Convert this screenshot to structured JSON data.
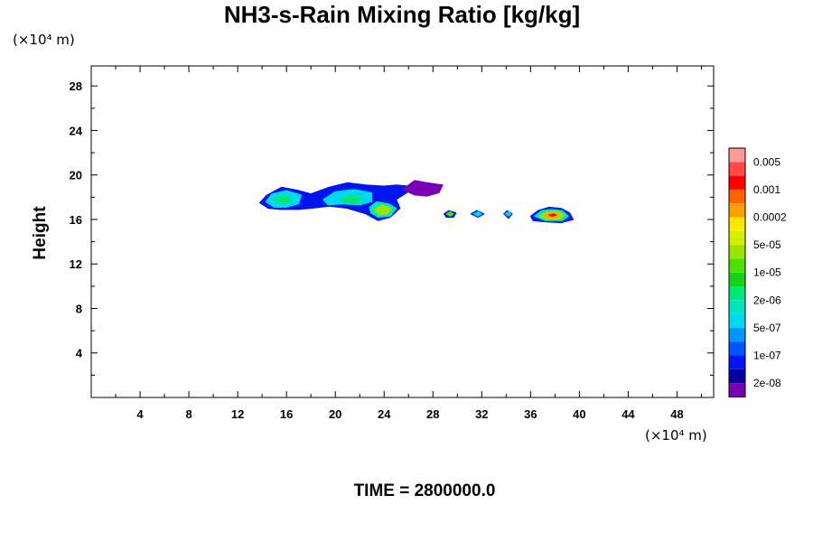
{
  "chart_data": {
    "type": "heatmap",
    "title": "NH3-s-Rain Mixing Ratio [kg/kg]",
    "ylabel": "Height",
    "xlabel": "",
    "x_unit": "(×10⁴ m)",
    "y_unit": "(×10⁴ m)",
    "xlim": [
      0,
      51
    ],
    "ylim": [
      0,
      29.8
    ],
    "x_ticks": [
      4,
      8,
      12,
      16,
      20,
      24,
      28,
      32,
      36,
      40,
      44,
      48
    ],
    "y_ticks": [
      4,
      8,
      12,
      16,
      20,
      24,
      28
    ],
    "grid": false,
    "footer": "TIME = 2800000.0",
    "colorbar": {
      "labels": [
        "0.005",
        "0.001",
        "0.0002",
        "5e-05",
        "1e-05",
        "2e-06",
        "5e-07",
        "1e-07",
        "2e-08"
      ],
      "levels": [
        {
          "color": "#ff9a9a"
        },
        {
          "color": "#ff4a4a"
        },
        {
          "color": "#ff0000"
        },
        {
          "color": "#ff6400"
        },
        {
          "color": "#ffa000"
        },
        {
          "color": "#ffe600"
        },
        {
          "color": "#d2f000"
        },
        {
          "color": "#9be600"
        },
        {
          "color": "#4ee000"
        },
        {
          "color": "#14d214"
        },
        {
          "color": "#00e678"
        },
        {
          "color": "#00e6be"
        },
        {
          "color": "#00d8f0"
        },
        {
          "color": "#0096ff"
        },
        {
          "color": "#0055ff"
        },
        {
          "color": "#0014f0"
        },
        {
          "color": "#0000a0"
        },
        {
          "color": "#7800b4"
        }
      ]
    },
    "regions": [
      {
        "shape": [
          [
            13.8,
            17.5
          ],
          [
            14.4,
            18.2
          ],
          [
            15.6,
            18.9
          ],
          [
            17.0,
            18.6
          ],
          [
            18.0,
            18.3
          ],
          [
            19.5,
            18.9
          ],
          [
            21.0,
            19.3
          ],
          [
            22.5,
            19.1
          ],
          [
            24.0,
            19.0
          ],
          [
            25.0,
            19.1
          ],
          [
            26.0,
            19.0
          ],
          [
            26.0,
            18.5
          ],
          [
            25.0,
            17.8
          ],
          [
            25.3,
            17.0
          ],
          [
            24.5,
            16.2
          ],
          [
            23.5,
            15.9
          ],
          [
            22.5,
            16.5
          ],
          [
            21.0,
            17.0
          ],
          [
            19.5,
            17.2
          ],
          [
            18.0,
            17.0
          ],
          [
            17.0,
            16.9
          ],
          [
            15.5,
            16.9
          ],
          [
            14.5,
            17.0
          ]
        ],
        "color": "#0014f0"
      },
      {
        "shape": [
          [
            25.5,
            18.7
          ],
          [
            26.5,
            19.5
          ],
          [
            27.5,
            19.3
          ],
          [
            28.8,
            19.1
          ],
          [
            28.5,
            18.4
          ],
          [
            27.5,
            18.1
          ],
          [
            26.5,
            18.2
          ]
        ],
        "color": "#7800b4"
      },
      {
        "shape": [
          [
            14.3,
            17.6
          ],
          [
            14.8,
            18.3
          ],
          [
            16.0,
            18.6
          ],
          [
            17.2,
            18.2
          ],
          [
            17.0,
            17.4
          ],
          [
            16.0,
            17.1
          ],
          [
            15.0,
            17.1
          ]
        ],
        "color": "#00d8f0"
      },
      {
        "shape": [
          [
            14.9,
            17.7
          ],
          [
            15.5,
            18.2
          ],
          [
            16.3,
            18.0
          ],
          [
            16.2,
            17.5
          ],
          [
            15.4,
            17.4
          ]
        ],
        "color": "#00e678"
      },
      {
        "shape": [
          [
            19.0,
            17.8
          ],
          [
            20.0,
            18.5
          ],
          [
            21.5,
            18.7
          ],
          [
            23.0,
            18.4
          ],
          [
            23.0,
            17.6
          ],
          [
            22.0,
            17.3
          ],
          [
            20.5,
            17.4
          ],
          [
            19.4,
            17.3
          ]
        ],
        "color": "#00d8f0"
      },
      {
        "shape": [
          [
            20.3,
            17.8
          ],
          [
            21.3,
            18.2
          ],
          [
            22.2,
            17.9
          ],
          [
            21.8,
            17.5
          ],
          [
            20.8,
            17.5
          ]
        ],
        "color": "#00e678"
      },
      {
        "shape": [
          [
            22.8,
            17.1
          ],
          [
            23.4,
            17.6
          ],
          [
            24.4,
            17.4
          ],
          [
            25.0,
            17.0
          ],
          [
            24.5,
            16.3
          ],
          [
            23.5,
            16.2
          ],
          [
            22.9,
            16.6
          ]
        ],
        "color": "#00e6be"
      },
      {
        "shape": [
          [
            23.2,
            16.9
          ],
          [
            23.8,
            17.3
          ],
          [
            24.6,
            17.0
          ],
          [
            24.3,
            16.5
          ],
          [
            23.6,
            16.4
          ]
        ],
        "color": "#9be600"
      },
      {
        "shape": [
          [
            28.9,
            16.5
          ],
          [
            29.3,
            16.8
          ],
          [
            29.9,
            16.6
          ],
          [
            29.7,
            16.2
          ],
          [
            29.1,
            16.2
          ]
        ],
        "color": "#0014f0"
      },
      {
        "shape": [
          [
            29.1,
            16.5
          ],
          [
            29.4,
            16.7
          ],
          [
            29.7,
            16.5
          ],
          [
            29.4,
            16.3
          ]
        ],
        "color": "#4ee000"
      },
      {
        "shape": [
          [
            31.1,
            16.5
          ],
          [
            31.6,
            16.8
          ],
          [
            32.2,
            16.5
          ],
          [
            31.7,
            16.2
          ]
        ],
        "color": "#0014f0"
      },
      {
        "shape": [
          [
            31.3,
            16.5
          ],
          [
            31.7,
            16.7
          ],
          [
            32.0,
            16.5
          ],
          [
            31.7,
            16.3
          ]
        ],
        "color": "#00d8f0"
      },
      {
        "shape": [
          [
            33.8,
            16.5
          ],
          [
            34.1,
            16.8
          ],
          [
            34.5,
            16.5
          ],
          [
            34.2,
            16.1
          ]
        ],
        "color": "#0014f0"
      },
      {
        "shape": [
          [
            33.9,
            16.5
          ],
          [
            34.2,
            16.7
          ],
          [
            34.4,
            16.5
          ],
          [
            34.2,
            16.3
          ]
        ],
        "color": "#00d8f0"
      },
      {
        "shape": [
          [
            36.0,
            16.3
          ],
          [
            36.6,
            16.8
          ],
          [
            37.5,
            17.1
          ],
          [
            38.5,
            17.0
          ],
          [
            39.2,
            16.6
          ],
          [
            39.5,
            16.0
          ],
          [
            38.5,
            15.7
          ],
          [
            37.0,
            15.8
          ],
          [
            36.2,
            15.9
          ]
        ],
        "color": "#0014f0"
      },
      {
        "shape": [
          [
            36.3,
            16.3
          ],
          [
            36.9,
            16.8
          ],
          [
            37.7,
            16.9
          ],
          [
            38.6,
            16.8
          ],
          [
            39.1,
            16.3
          ],
          [
            38.6,
            15.9
          ],
          [
            37.2,
            15.9
          ]
        ],
        "color": "#00e6be"
      },
      {
        "shape": [
          [
            36.7,
            16.3
          ],
          [
            37.3,
            16.7
          ],
          [
            38.3,
            16.7
          ],
          [
            38.8,
            16.4
          ],
          [
            38.4,
            16.0
          ],
          [
            37.3,
            16.0
          ]
        ],
        "color": "#9be600"
      },
      {
        "shape": [
          [
            37.1,
            16.4
          ],
          [
            37.6,
            16.6
          ],
          [
            38.3,
            16.5
          ],
          [
            38.1,
            16.2
          ],
          [
            37.4,
            16.2
          ]
        ],
        "color": "#ffa000"
      },
      {
        "shape": [
          [
            37.5,
            16.4
          ],
          [
            37.9,
            16.5
          ],
          [
            38.1,
            16.4
          ],
          [
            37.8,
            16.3
          ]
        ],
        "color": "#ff0000"
      }
    ]
  }
}
